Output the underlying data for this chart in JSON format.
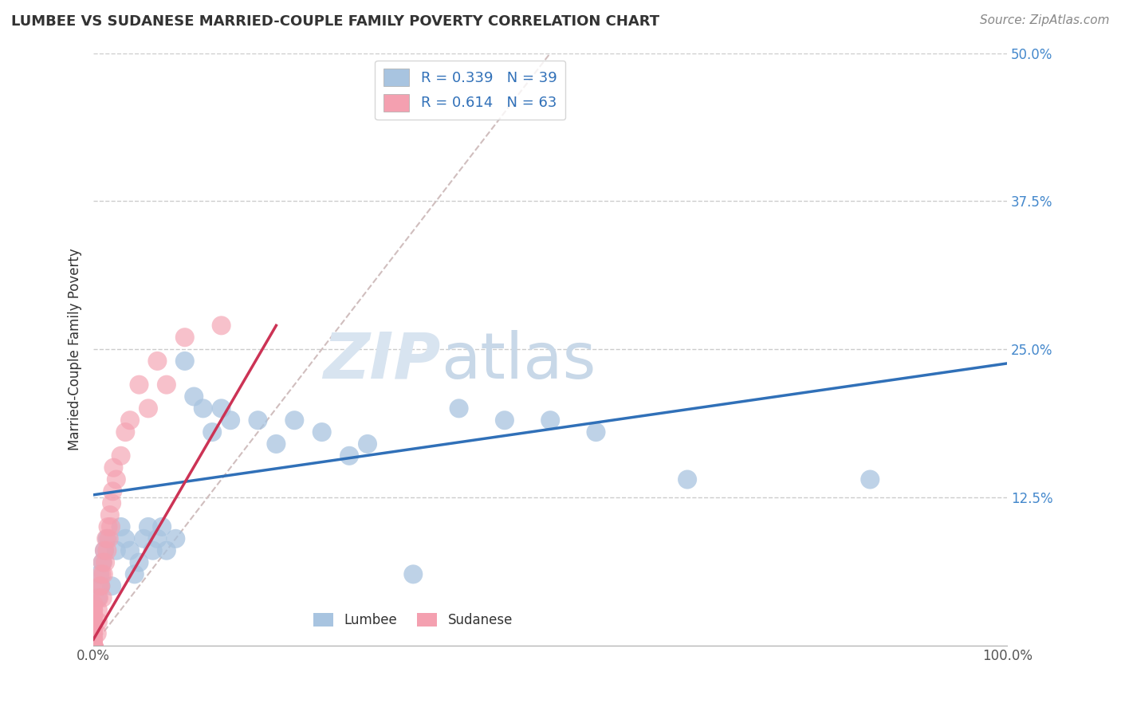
{
  "title": "LUMBEE VS SUDANESE MARRIED-COUPLE FAMILY POVERTY CORRELATION CHART",
  "source": "Source: ZipAtlas.com",
  "ylabel": "Married-Couple Family Poverty",
  "xlim": [
    0,
    1.0
  ],
  "ylim": [
    0,
    0.5
  ],
  "xticks": [
    0.0,
    0.25,
    0.5,
    0.75,
    1.0
  ],
  "xtick_labels": [
    "0.0%",
    "",
    "",
    "",
    "100.0%"
  ],
  "yticks": [
    0.0,
    0.125,
    0.25,
    0.375,
    0.5
  ],
  "ytick_labels": [
    "",
    "12.5%",
    "25.0%",
    "37.5%",
    "50.0%"
  ],
  "lumbee_R": 0.339,
  "lumbee_N": 39,
  "sudanese_R": 0.614,
  "sudanese_N": 63,
  "lumbee_color": "#a8c4e0",
  "sudanese_color": "#f4a0b0",
  "lumbee_line_color": "#3070b8",
  "sudanese_line_color": "#cc3355",
  "ref_line_color": "#d0bebe",
  "background_color": "#ffffff",
  "watermark_zip": "ZIP",
  "watermark_atlas": "atlas",
  "watermark_color": "#d8e4f0",
  "lumbee_x": [
    0.005,
    0.007,
    0.008,
    0.01,
    0.012,
    0.015,
    0.02,
    0.025,
    0.03,
    0.035,
    0.04,
    0.045,
    0.05,
    0.055,
    0.06,
    0.065,
    0.07,
    0.075,
    0.08,
    0.09,
    0.1,
    0.11,
    0.12,
    0.13,
    0.14,
    0.15,
    0.18,
    0.2,
    0.22,
    0.25,
    0.28,
    0.3,
    0.35,
    0.4,
    0.45,
    0.5,
    0.55,
    0.65,
    0.85
  ],
  "lumbee_y": [
    0.04,
    0.06,
    0.05,
    0.07,
    0.08,
    0.09,
    0.05,
    0.08,
    0.1,
    0.09,
    0.08,
    0.06,
    0.07,
    0.09,
    0.1,
    0.08,
    0.09,
    0.1,
    0.08,
    0.09,
    0.24,
    0.21,
    0.2,
    0.18,
    0.2,
    0.19,
    0.19,
    0.17,
    0.19,
    0.18,
    0.16,
    0.17,
    0.06,
    0.2,
    0.19,
    0.19,
    0.18,
    0.14,
    0.14
  ],
  "sudanese_x": [
    0.0,
    0.0,
    0.0,
    0.0,
    0.0,
    0.0,
    0.0,
    0.0,
    0.0,
    0.0,
    0.0,
    0.0,
    0.0,
    0.0,
    0.0,
    0.0,
    0.0,
    0.0,
    0.0,
    0.0,
    0.0,
    0.0,
    0.0,
    0.0,
    0.0,
    0.0,
    0.0,
    0.0,
    0.0,
    0.0,
    0.0,
    0.0,
    0.004,
    0.005,
    0.005,
    0.006,
    0.007,
    0.008,
    0.009,
    0.01,
    0.01,
    0.011,
    0.012,
    0.013,
    0.014,
    0.015,
    0.016,
    0.017,
    0.018,
    0.019,
    0.02,
    0.021,
    0.022,
    0.025,
    0.03,
    0.035,
    0.04,
    0.05,
    0.06,
    0.07,
    0.08,
    0.1,
    0.14
  ],
  "sudanese_y": [
    0.0,
    0.0,
    0.0,
    0.0,
    0.0,
    0.0,
    0.0,
    0.0,
    0.0,
    0.0,
    0.0,
    0.0,
    0.0,
    0.0,
    0.0,
    0.0,
    0.0,
    0.0,
    0.0,
    0.005,
    0.005,
    0.01,
    0.01,
    0.015,
    0.015,
    0.02,
    0.02,
    0.025,
    0.025,
    0.03,
    0.03,
    0.035,
    0.01,
    0.02,
    0.03,
    0.04,
    0.05,
    0.05,
    0.06,
    0.04,
    0.07,
    0.06,
    0.08,
    0.07,
    0.09,
    0.08,
    0.1,
    0.09,
    0.11,
    0.1,
    0.12,
    0.13,
    0.15,
    0.14,
    0.16,
    0.18,
    0.19,
    0.22,
    0.2,
    0.24,
    0.22,
    0.26,
    0.27
  ],
  "lumbee_trend_x": [
    0.0,
    1.0
  ],
  "lumbee_trend_y": [
    0.127,
    0.238
  ],
  "sudanese_trend_x": [
    0.0,
    0.2
  ],
  "sudanese_trend_y": [
    0.005,
    0.27
  ],
  "ref_line_x": [
    0.0,
    0.5
  ],
  "ref_line_y": [
    0.0,
    0.5
  ]
}
